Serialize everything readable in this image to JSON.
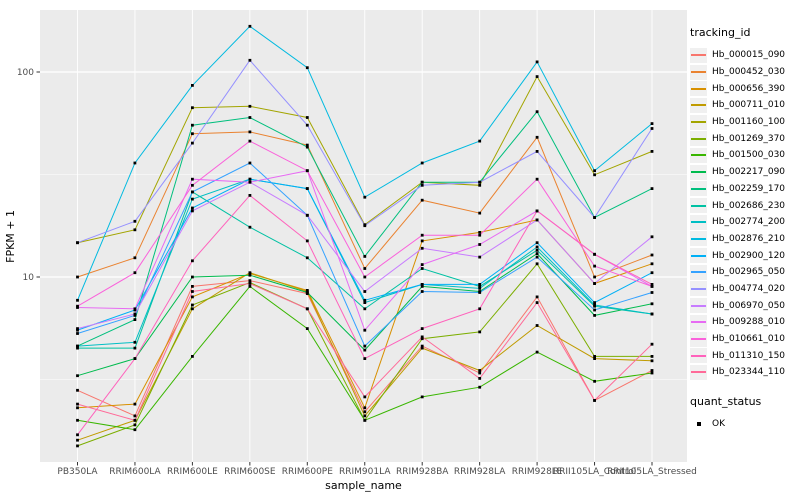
{
  "axes": {
    "y_title": "FPKM + 1",
    "x_title": "sample_name",
    "y_ticks": [
      {
        "label": "100",
        "value": 100
      },
      {
        "label": "10",
        "value": 10
      }
    ]
  },
  "legend": {
    "tracking_title": "tracking_id",
    "quant_title": "quant_status",
    "quant_items": [
      {
        "label": "OK"
      }
    ]
  },
  "colors": {
    "panel_background": "#EBEBEB",
    "gridline": "#FFFFFF",
    "tick_mark": "#333333",
    "tick_text": "#4D4D4D",
    "point": "#000000",
    "legend_key_background": "#F0F0F0"
  },
  "chart_data": {
    "type": "line",
    "y_scale": "log10",
    "ylim": [
      1.25,
      210
    ],
    "grid": "white-on-grey",
    "legend_position": "right",
    "point_shape": "small-black-square",
    "categories": [
      "PB350LA",
      "RRIM600LA",
      "RRIM600LE",
      "RRIM600SE",
      "RRIM600PE",
      "RRIM901LA",
      "RRIM928BA",
      "RRIM928LA",
      "RRIM928LE",
      "RRII105LA_Control",
      "RRII105LA_Stressed"
    ],
    "series": [
      {
        "name": "Hb_000015_090",
        "color": "#F8766D",
        "values": [
          2.8,
          2.1,
          9.0,
          9.6,
          8.3,
          2.2,
          4.6,
          3.4,
          8.0,
          2.5,
          3.5
        ]
      },
      {
        "name": "Hb_000452_030",
        "color": "#EA8331",
        "values": [
          10.0,
          12.4,
          50,
          51,
          44,
          11.0,
          23.7,
          20.5,
          48,
          10.0,
          12.8
        ]
      },
      {
        "name": "Hb_000656_390",
        "color": "#D89000",
        "values": [
          2.3,
          2.4,
          8.0,
          10.4,
          8.6,
          2.3,
          15.0,
          16.5,
          19.0,
          9.3,
          11.6
        ]
      },
      {
        "name": "Hb_000711_010",
        "color": "#C09B00",
        "values": [
          1.6,
          2.0,
          7.0,
          10.5,
          8.5,
          2.1,
          4.5,
          3.5,
          5.8,
          4.0,
          3.9
        ]
      },
      {
        "name": "Hb_001160_100",
        "color": "#A3A500",
        "values": [
          14.7,
          17.0,
          67,
          68,
          60,
          18.0,
          29,
          28,
          95,
          31.5,
          41
        ]
      },
      {
        "name": "Hb_001269_370",
        "color": "#7CAE00",
        "values": [
          1.5,
          1.9,
          7.3,
          9.4,
          7.0,
          2.0,
          5.0,
          5.4,
          11.6,
          4.1,
          4.1
        ]
      },
      {
        "name": "Hb_001500_030",
        "color": "#39B600",
        "values": [
          2.0,
          1.8,
          4.1,
          9.0,
          5.6,
          2.0,
          2.6,
          2.9,
          4.3,
          3.1,
          3.4
        ]
      },
      {
        "name": "Hb_002217_090",
        "color": "#00BB4E",
        "values": [
          3.3,
          4.0,
          10.0,
          10.2,
          8.4,
          4.4,
          9.0,
          8.5,
          13.0,
          6.5,
          7.4
        ]
      },
      {
        "name": "Hb_002259_170",
        "color": "#00BF7D",
        "values": [
          4.6,
          6.2,
          55,
          60,
          43,
          12.6,
          29,
          29,
          64,
          19.5,
          27
        ]
      },
      {
        "name": "Hb_002686_230",
        "color": "#00C1A3",
        "values": [
          4.5,
          4.5,
          26,
          17.5,
          12.4,
          7.0,
          11.0,
          9.0,
          13.5,
          7.2,
          6.6
        ]
      },
      {
        "name": "Hb_002774_200",
        "color": "#00BFC4",
        "values": [
          4.6,
          4.8,
          24,
          30,
          27,
          7.5,
          9.2,
          8.8,
          14.0,
          7.3,
          6.6
        ]
      },
      {
        "name": "Hb_002876_210",
        "color": "#00BAE0",
        "values": [
          7.7,
          36,
          86,
          167,
          105,
          24.5,
          36,
          46,
          112,
          33,
          56
        ]
      },
      {
        "name": "Hb_002900_120",
        "color": "#00B0F6",
        "values": [
          5.5,
          6.9,
          21.7,
          30,
          27,
          7.7,
          9.2,
          9.2,
          14.7,
          7.5,
          10.5
        ]
      },
      {
        "name": "Hb_002965_050",
        "color": "#35A2FF",
        "values": [
          5.3,
          6.5,
          26,
          36,
          20,
          4.6,
          8.5,
          8.4,
          12.5,
          6.9,
          8.4
        ]
      },
      {
        "name": "Hb_004774_020",
        "color": "#9590FF",
        "values": [
          14.7,
          18.7,
          45,
          114,
          55,
          17.8,
          28,
          29,
          41,
          19.5,
          53
        ]
      },
      {
        "name": "Hb_006970_050",
        "color": "#C77CFF",
        "values": [
          5.6,
          6.6,
          21,
          29,
          20,
          8.5,
          13.8,
          12.5,
          19.0,
          9.3,
          15.7
        ]
      },
      {
        "name": "Hb_009288_010",
        "color": "#E76BF3",
        "values": [
          7.1,
          7.0,
          30,
          29,
          33,
          5.5,
          11.5,
          14.4,
          21,
          12.9,
          9.0
        ]
      },
      {
        "name": "Hb_010661_010",
        "color": "#FA62DB",
        "values": [
          7.2,
          10.5,
          28,
          46,
          33,
          10.0,
          16.0,
          16.0,
          30,
          11.3,
          9.0
        ]
      },
      {
        "name": "Hb_011310_150",
        "color": "#FF62BC",
        "values": [
          1.7,
          4.0,
          12.0,
          25,
          15.0,
          4.0,
          5.6,
          7.0,
          21,
          12.9,
          9.2
        ]
      },
      {
        "name": "Hb_023344_110",
        "color": "#FF6A98",
        "values": [
          2.4,
          2.0,
          8.5,
          9.3,
          7.0,
          2.6,
          5.1,
          3.2,
          7.5,
          2.5,
          4.7
        ]
      }
    ]
  }
}
